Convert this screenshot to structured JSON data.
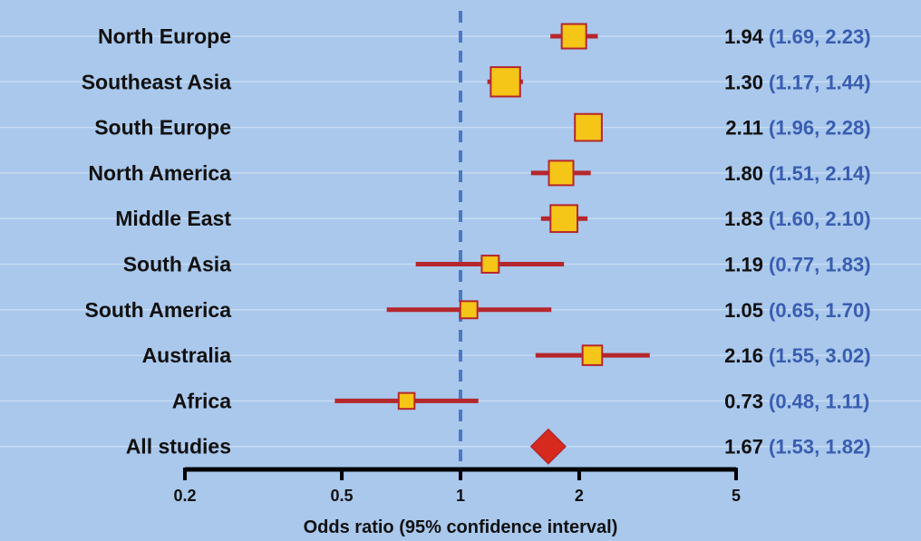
{
  "colors": {
    "background": "#a9c8ec",
    "gridline": "#c6dbf3",
    "ci_line": "#b5272c",
    "marker_fill": "#f5c518",
    "marker_stroke": "#b5272c",
    "summary_fill": "#d62a1e",
    "reference_line": "#4d78c4",
    "ci_text": "#3a5db0",
    "axis": "#000000"
  },
  "chart_data": {
    "type": "forest",
    "x_scale": "log",
    "xlim": [
      0.2,
      5
    ],
    "reference_value": 1,
    "xlabel": "Odds ratio (95% confidence interval)",
    "x_ticks": [
      {
        "value": 0.2,
        "label": "0.2"
      },
      {
        "value": 0.5,
        "label": "0.5"
      },
      {
        "value": 1,
        "label": "1"
      },
      {
        "value": 2,
        "label": "2"
      },
      {
        "value": 5,
        "label": "5"
      }
    ],
    "rows": [
      {
        "label": "North Europe",
        "estimate": 1.94,
        "lower": 1.69,
        "upper": 2.23,
        "estimate_text": "1.94",
        "ci_text": "(1.69, 2.23)",
        "weight": 1.0,
        "summary": false
      },
      {
        "label": "Southeast Asia",
        "estimate": 1.3,
        "lower": 1.17,
        "upper": 1.44,
        "estimate_text": "1.30",
        "ci_text": "(1.17, 1.44)",
        "weight": 1.2,
        "summary": false
      },
      {
        "label": "South Europe",
        "estimate": 2.11,
        "lower": 1.96,
        "upper": 2.28,
        "estimate_text": "2.11",
        "ci_text": "(1.96, 2.28)",
        "weight": 1.1,
        "summary": false
      },
      {
        "label": "North America",
        "estimate": 1.8,
        "lower": 1.51,
        "upper": 2.14,
        "estimate_text": "1.80",
        "ci_text": "(1.51, 2.14)",
        "weight": 1.0,
        "summary": false
      },
      {
        "label": "Middle East",
        "estimate": 1.83,
        "lower": 1.6,
        "upper": 2.1,
        "estimate_text": "1.83",
        "ci_text": "(1.60, 2.10)",
        "weight": 1.1,
        "summary": false
      },
      {
        "label": "South Asia",
        "estimate": 1.19,
        "lower": 0.77,
        "upper": 1.83,
        "estimate_text": "1.19",
        "ci_text": "(0.77, 1.83)",
        "weight": 0.7,
        "summary": false
      },
      {
        "label": "South America",
        "estimate": 1.05,
        "lower": 0.65,
        "upper": 1.7,
        "estimate_text": "1.05",
        "ci_text": "(0.65, 1.70)",
        "weight": 0.7,
        "summary": false
      },
      {
        "label": "Australia",
        "estimate": 2.16,
        "lower": 1.55,
        "upper": 3.02,
        "estimate_text": "2.16",
        "ci_text": "(1.55, 3.02)",
        "weight": 0.8,
        "summary": false
      },
      {
        "label": "Africa",
        "estimate": 0.73,
        "lower": 0.48,
        "upper": 1.11,
        "estimate_text": "0.73",
        "ci_text": "(0.48, 1.11)",
        "weight": 0.65,
        "summary": false
      },
      {
        "label": "All studies",
        "estimate": 1.67,
        "lower": 1.53,
        "upper": 1.82,
        "estimate_text": "1.67",
        "ci_text": "(1.53, 1.82)",
        "weight": 1.0,
        "summary": true
      }
    ]
  }
}
